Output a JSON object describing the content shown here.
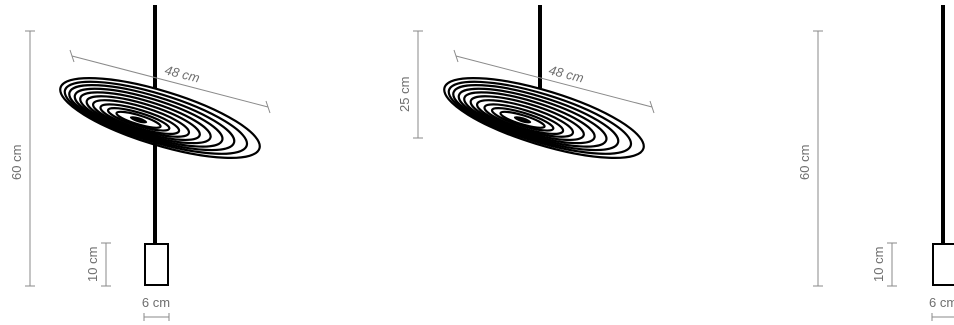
{
  "figures": [
    {
      "id": "full-lamp-angled",
      "labels": {
        "height": "60 cm",
        "diameter": "48 cm",
        "canopy_height": "10 cm",
        "canopy_width": "6 cm"
      }
    },
    {
      "id": "disc-only",
      "labels": {
        "height": "25 cm",
        "diameter": "48 cm"
      }
    },
    {
      "id": "side-view-cropped",
      "labels": {
        "height": "60 cm",
        "canopy_height": "10 cm",
        "canopy_width": "6 cm"
      }
    }
  ],
  "colors": {
    "line": "#000000",
    "dimension": "#8a8a8a",
    "dimension_text": "#6f6f6f",
    "background": "#ffffff"
  }
}
